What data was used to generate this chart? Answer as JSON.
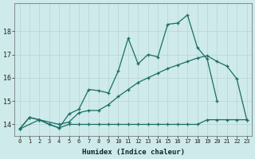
{
  "xlabel": "Humidex (Indice chaleur)",
  "background_color": "#ceeaea",
  "grid_color": "#b8d4d4",
  "line_color": "#1a6e64",
  "xlim": [
    -0.5,
    23.5
  ],
  "ylim": [
    13.5,
    19.2
  ],
  "yticks": [
    14,
    15,
    16,
    17,
    18
  ],
  "xticks": [
    0,
    1,
    2,
    3,
    4,
    5,
    6,
    7,
    8,
    9,
    10,
    11,
    12,
    13,
    14,
    15,
    16,
    17,
    18,
    19,
    20,
    21,
    22,
    23
  ],
  "line1_x": [
    0,
    1,
    2,
    3,
    4,
    5,
    6,
    7,
    8,
    9,
    10,
    11,
    12,
    13,
    14,
    15,
    16,
    17,
    18,
    19,
    20
  ],
  "line1_y": [
    13.8,
    14.3,
    14.2,
    14.0,
    13.85,
    14.45,
    14.65,
    15.5,
    15.45,
    15.35,
    16.3,
    17.7,
    16.6,
    17.0,
    16.9,
    18.3,
    18.35,
    18.7,
    17.3,
    16.8,
    15.0
  ],
  "line2_x": [
    0,
    2,
    4,
    5,
    6,
    7,
    8,
    9,
    10,
    11,
    12,
    13,
    14,
    15,
    16,
    17,
    18,
    19,
    20,
    21,
    22,
    23
  ],
  "line2_y": [
    13.8,
    14.2,
    14.0,
    14.1,
    14.5,
    14.6,
    14.6,
    14.85,
    15.2,
    15.5,
    15.8,
    16.0,
    16.2,
    16.4,
    16.55,
    16.7,
    16.85,
    16.95,
    16.7,
    16.5,
    15.95,
    14.2
  ],
  "line3_x": [
    0,
    1,
    2,
    3,
    4,
    5,
    6,
    7,
    8,
    9,
    10,
    11,
    12,
    13,
    14,
    15,
    16,
    17,
    18,
    19,
    20,
    21,
    22,
    23
  ],
  "line3_y": [
    13.8,
    14.3,
    14.2,
    14.0,
    13.85,
    14.0,
    14.0,
    14.0,
    14.0,
    14.0,
    14.0,
    14.0,
    14.0,
    14.0,
    14.0,
    14.0,
    14.0,
    14.0,
    14.0,
    14.2,
    14.2,
    14.2,
    14.2,
    14.2
  ]
}
